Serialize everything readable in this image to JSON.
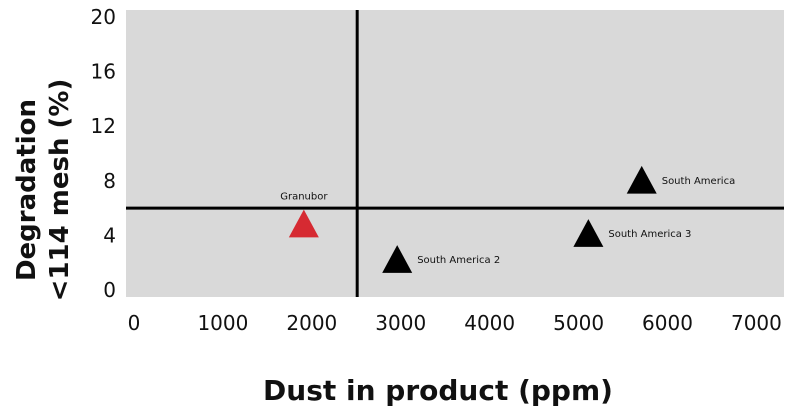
{
  "chart_data": {
    "type": "scatter",
    "xlabel": "Dust in product (ppm)",
    "ylabel_lines": [
      "Degradation",
      "<114 mesh (%)"
    ],
    "x_ticks": [
      0,
      1000,
      2000,
      3000,
      4000,
      5000,
      6000,
      7000
    ],
    "y_ticks": [
      0,
      4,
      8,
      12,
      16,
      20
    ],
    "xlim": [
      0,
      7400
    ],
    "ylim": [
      -0.5,
      20.5
    ],
    "points": [
      {
        "label": "Granubor",
        "x": 2000,
        "y": 4.8,
        "color": "#d62a32",
        "label_pos": "above"
      },
      {
        "label": "South America 2",
        "x": 3050,
        "y": 2.2,
        "color": "#000000",
        "label_pos": "right"
      },
      {
        "label": "South America 3",
        "x": 5200,
        "y": 4.1,
        "color": "#000000",
        "label_pos": "right"
      },
      {
        "label": "South America",
        "x": 5800,
        "y": 8.0,
        "color": "#000000",
        "label_pos": "right"
      }
    ],
    "reference_lines": {
      "x": 2600,
      "y": 6.0
    },
    "background": "#d9d9d9",
    "grid": false,
    "legend": "none"
  }
}
